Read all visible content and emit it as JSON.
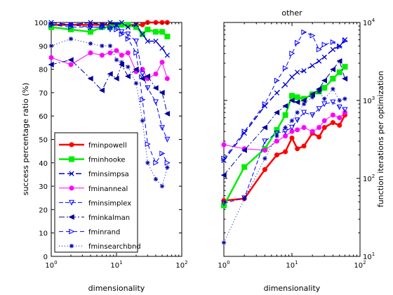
{
  "chart_data": [
    {
      "type": "line",
      "title": "",
      "xlabel": "dimensionality",
      "ylabel": "success percentage ratio (%)",
      "xscale": "log",
      "xlim": [
        1,
        100
      ],
      "ylim": [
        0,
        100
      ],
      "xticks": [
        {
          "base": "10",
          "exp": "0"
        },
        {
          "base": "10",
          "exp": "1"
        },
        {
          "base": "10",
          "exp": "2"
        }
      ],
      "yticks": [
        "0",
        "10",
        "20",
        "30",
        "40",
        "50",
        "60",
        "70",
        "80",
        "90",
        "100"
      ],
      "legend_position": "lower-left",
      "series": [
        {
          "name": "fminpowell",
          "color": "#ff0000",
          "dash": "",
          "marker": "dot",
          "width": 2.5,
          "x": [
            1,
            2,
            4,
            6,
            8,
            10,
            12,
            15,
            20,
            25,
            30,
            40,
            50,
            60
          ],
          "y": [
            99,
            99,
            99,
            99,
            99,
            99,
            99,
            99,
            99,
            99,
            100,
            100,
            100,
            100
          ]
        },
        {
          "name": "fminhooke",
          "color": "#00ee00",
          "dash": "",
          "marker": "square",
          "width": 2.5,
          "x": [
            1,
            2,
            4,
            6,
            8,
            10,
            12,
            15,
            20,
            25,
            30,
            40,
            50,
            60
          ],
          "y": [
            98,
            97,
            96,
            98,
            98,
            99,
            99,
            99,
            98,
            95,
            97,
            96,
            96,
            94
          ]
        },
        {
          "name": "fminsimpsa",
          "color": "#0000cc",
          "dash": "8,4",
          "marker": "x",
          "width": 1.5,
          "x": [
            1,
            2,
            4,
            6,
            8,
            10,
            12,
            15,
            20,
            25,
            30,
            40,
            50,
            60
          ],
          "y": [
            100,
            99,
            100,
            99,
            100,
            99,
            100,
            98,
            99,
            95,
            92,
            92,
            89,
            86
          ]
        },
        {
          "name": "fminanneal",
          "color": "#ff00ff",
          "dash": "",
          "marker": "dot",
          "width": 1,
          "x": [
            1,
            2,
            4,
            6,
            8,
            10,
            12,
            15,
            20,
            25,
            30,
            40,
            50,
            60
          ],
          "y": [
            85,
            82,
            87,
            86,
            87,
            88,
            86,
            87,
            79,
            80,
            76,
            78,
            83,
            76
          ]
        },
        {
          "name": "fminsimplex",
          "color": "#0000ff",
          "dash": "6,3",
          "marker": "triangle-down",
          "width": 1,
          "x": [
            1,
            2,
            4,
            6,
            8,
            10,
            12,
            15,
            20,
            25,
            30,
            40,
            50,
            60
          ],
          "y": [
            99,
            99,
            98,
            98,
            97,
            99,
            96,
            95,
            92,
            78,
            72,
            66,
            55,
            50
          ]
        },
        {
          "name": "fminkalman",
          "color": "#000099",
          "dash": "8,3,2,3",
          "marker": "triangle-left",
          "width": 1,
          "x": [
            1,
            2,
            4,
            6,
            8,
            10,
            12,
            15,
            20,
            25,
            30,
            40,
            50,
            60
          ],
          "y": [
            82,
            84,
            76,
            71,
            78,
            76,
            82,
            77,
            80,
            76,
            77,
            72,
            70,
            61
          ]
        },
        {
          "name": "fminrand",
          "color": "#0000ff",
          "dash": "6,4",
          "marker": "triangle-right",
          "width": 1,
          "x": [
            1,
            2,
            4,
            6,
            8,
            10,
            12,
            15,
            20,
            25,
            30,
            40,
            50,
            60
          ],
          "y": [
            99,
            98,
            98,
            98,
            98,
            97,
            95,
            93,
            87,
            67,
            48,
            40,
            44,
            40
          ]
        },
        {
          "name": "fminsearchbnd",
          "color": "#0000aa",
          "dash": "1,3",
          "marker": "star",
          "width": 1,
          "x": [
            1,
            2,
            4,
            6,
            8,
            10,
            12,
            15,
            20,
            25,
            30,
            40,
            50,
            60
          ],
          "y": [
            90,
            93,
            91,
            90,
            90,
            84,
            83,
            81,
            74,
            58,
            40,
            33,
            30,
            38
          ]
        }
      ]
    },
    {
      "type": "line",
      "title": "other",
      "xlabel": "dimensionality",
      "ylabel": "function iterations per optimization",
      "xscale": "log",
      "yscale": "log",
      "xlim": [
        1,
        100
      ],
      "ylim": [
        10,
        10000
      ],
      "xticks": [
        {
          "base": "10",
          "exp": "0"
        },
        {
          "base": "10",
          "exp": "1"
        },
        {
          "base": "10",
          "exp": "2"
        }
      ],
      "yticks": [
        {
          "base": "10",
          "exp": "1"
        },
        {
          "base": "10",
          "exp": "2"
        },
        {
          "base": "10",
          "exp": "3"
        },
        {
          "base": "10",
          "exp": "4"
        }
      ],
      "yaxis_side": "right",
      "series": [
        {
          "name": "fminpowell",
          "color": "#ff0000",
          "dash": "",
          "marker": "dot",
          "width": 2.5,
          "x": [
            1,
            2,
            4,
            6,
            8,
            10,
            12,
            15,
            20,
            25,
            30,
            40,
            50,
            60
          ],
          "y": [
            52,
            55,
            130,
            200,
            220,
            330,
            240,
            260,
            380,
            340,
            450,
            520,
            480,
            650
          ]
        },
        {
          "name": "fminhooke",
          "color": "#00ee00",
          "dash": "",
          "marker": "square",
          "width": 2.5,
          "x": [
            1,
            2,
            4,
            6,
            8,
            10,
            12,
            15,
            20,
            25,
            30,
            40,
            50,
            60
          ],
          "y": [
            45,
            140,
            240,
            420,
            650,
            1150,
            1100,
            1050,
            1200,
            1300,
            1450,
            1900,
            2300,
            2700
          ]
        },
        {
          "name": "fminsimpsa",
          "color": "#0000cc",
          "dash": "8,4",
          "marker": "x",
          "width": 1.5,
          "x": [
            1,
            2,
            4,
            6,
            8,
            10,
            12,
            15,
            20,
            25,
            30,
            40,
            50,
            60
          ],
          "y": [
            170,
            380,
            850,
            1250,
            1600,
            2000,
            2300,
            2400,
            2800,
            3200,
            3600,
            4500,
            5000,
            6000
          ]
        },
        {
          "name": "fminanneal",
          "color": "#ff00ff",
          "dash": "",
          "marker": "dot",
          "width": 1,
          "x": [
            1,
            2,
            4,
            6,
            8,
            10,
            12,
            15,
            20,
            25,
            30,
            40,
            50,
            60
          ],
          "y": [
            270,
            240,
            230,
            300,
            350,
            400,
            420,
            450,
            400,
            450,
            550,
            650,
            600,
            700
          ]
        },
        {
          "name": "fminsimplex",
          "color": "#0000ff",
          "dash": "6,3",
          "marker": "triangle-down",
          "width": 1,
          "x": [
            1,
            2,
            4,
            6,
            8,
            10,
            12,
            15,
            20,
            25,
            30,
            40,
            50,
            60
          ],
          "y": [
            48,
            56,
            300,
            380,
            400,
            450,
            560,
            700,
            650,
            780,
            900,
            950,
            820,
            760
          ]
        },
        {
          "name": "fminkalman",
          "color": "#000099",
          "dash": "8,3,2,3",
          "marker": "triangle-left",
          "width": 1,
          "x": [
            1,
            2,
            4,
            6,
            8,
            10,
            12,
            15,
            20,
            25,
            30,
            40,
            50,
            60
          ],
          "y": [
            110,
            230,
            450,
            700,
            850,
            1000,
            950,
            1000,
            1200,
            1400,
            1800,
            2500,
            3200,
            1900
          ]
        },
        {
          "name": "fminrand",
          "color": "#0000ff",
          "dash": "6,4",
          "marker": "triangle-right",
          "width": 1,
          "x": [
            1,
            2,
            4,
            6,
            8,
            10,
            12,
            15,
            20,
            25,
            30,
            40,
            50,
            60
          ],
          "y": [
            180,
            400,
            900,
            1800,
            2600,
            4000,
            5500,
            7500,
            6800,
            4500,
            5200,
            5600,
            4900,
            5800
          ]
        },
        {
          "name": "fminsearchbnd",
          "color": "#0000aa",
          "dash": "1,3",
          "marker": "star",
          "width": 1,
          "x": [
            1,
            2,
            4,
            6,
            8,
            10,
            12,
            15,
            20,
            25,
            30,
            40,
            50,
            60
          ],
          "y": [
            15,
            55,
            180,
            350,
            450,
            550,
            700,
            900,
            1100,
            1300,
            1050,
            1400,
            1000,
            1050
          ]
        }
      ]
    }
  ]
}
